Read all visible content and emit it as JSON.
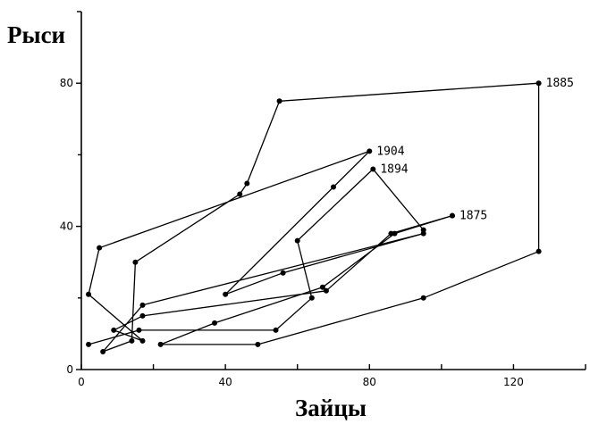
{
  "chart_data": {
    "type": "line",
    "xlabel": "Зайцы",
    "ylabel": "Рыси",
    "xlim": [
      0,
      140
    ],
    "ylim": [
      0,
      100
    ],
    "x_ticks": [
      0,
      40,
      80,
      120
    ],
    "y_ticks": [
      0,
      40,
      80
    ],
    "x_minor_ticks": [
      20,
      60,
      100
    ],
    "y_minor_ticks": [
      20,
      60
    ],
    "grid": false,
    "legend": "none",
    "series": [
      {
        "points": [
          [
            103,
            43
          ],
          [
            86,
            38
          ],
          [
            68,
            22
          ],
          [
            17,
            15
          ],
          [
            9,
            11
          ],
          [
            17,
            8
          ],
          [
            2,
            21
          ],
          [
            5,
            34
          ],
          [
            80,
            61
          ],
          [
            70,
            51
          ],
          [
            40,
            21
          ],
          [
            56,
            27
          ],
          [
            95,
            38
          ],
          [
            17,
            18
          ],
          [
            6,
            5
          ],
          [
            14,
            8
          ],
          [
            15,
            30
          ],
          [
            44,
            49
          ],
          [
            46,
            52
          ],
          [
            55,
            75
          ],
          [
            127,
            80
          ],
          [
            127,
            33
          ],
          [
            95,
            20
          ],
          [
            49,
            7
          ],
          [
            22,
            7
          ],
          [
            37,
            13
          ],
          [
            67,
            23
          ],
          [
            87,
            38
          ],
          [
            103,
            43
          ]
        ]
      },
      {
        "points": [
          [
            2,
            7
          ],
          [
            16,
            11
          ],
          [
            54,
            11
          ],
          [
            64,
            20
          ],
          [
            60,
            36
          ],
          [
            81,
            56
          ],
          [
            95,
            39
          ]
        ]
      }
    ],
    "annotations": [
      {
        "text": "1885",
        "x": 127,
        "y": 80
      },
      {
        "text": "1904",
        "x": 80,
        "y": 61
      },
      {
        "text": "1894",
        "x": 81,
        "y": 56
      },
      {
        "text": "1875",
        "x": 103,
        "y": 43
      }
    ]
  }
}
